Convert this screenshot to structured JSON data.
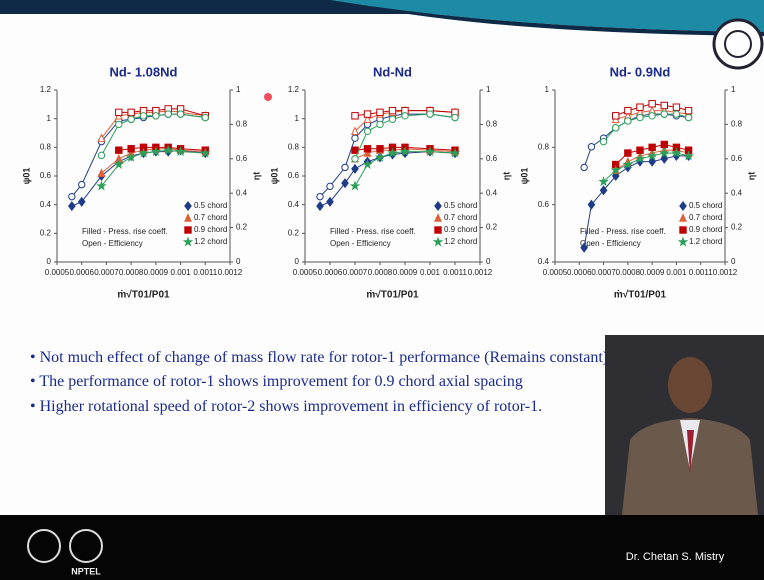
{
  "chart_data": [
    {
      "type": "line",
      "title": "Nd- 1.08Nd",
      "xlabel": "ṁ√T01/P01",
      "ylabel": "ψ01",
      "y2label": "ηt",
      "annotations": [
        "Filled - Press. rise coeff.",
        "Open - Efficiency"
      ],
      "xlim": [
        0.0005,
        0.0012
      ],
      "xticks": [
        0.0005,
        0.0006,
        0.0007,
        0.0008,
        0.0009,
        0.001,
        0.0011,
        0.0012
      ],
      "ylim": [
        0,
        1.2
      ],
      "yticks": [
        0,
        0.2,
        0.4,
        0.6,
        0.8,
        1,
        1.2
      ],
      "y2lim": [
        0,
        1
      ],
      "y2ticks": [
        0,
        0.2,
        0.4,
        0.6,
        0.8,
        1
      ],
      "x": [
        0.00056,
        0.0006,
        0.00068,
        0.00075,
        0.0008,
        0.00085,
        0.0009,
        0.00095,
        0.001,
        0.0011
      ],
      "series": [
        {
          "name": "0.5 chord",
          "color": "#1f3c88",
          "marker": "diamond",
          "filled": true,
          "values": [
            0.39,
            0.42,
            0.6,
            0.7,
            0.74,
            0.76,
            0.77,
            0.77,
            0.78,
            0.76
          ]
        },
        {
          "name": "0.7 chord",
          "color": "#e0603a",
          "marker": "triangle",
          "filled": true,
          "values": [
            null,
            null,
            0.62,
            0.72,
            0.76,
            0.78,
            0.79,
            0.79,
            0.78,
            0.77
          ]
        },
        {
          "name": "0.9 chord",
          "color": "#c00000",
          "marker": "square",
          "filled": true,
          "values": [
            null,
            null,
            null,
            0.78,
            0.79,
            0.8,
            0.8,
            0.8,
            0.79,
            0.78
          ]
        },
        {
          "name": "1.2 chord",
          "color": "#2ca05a",
          "marker": "star",
          "filled": true,
          "values": [
            null,
            null,
            0.53,
            0.68,
            0.73,
            0.76,
            0.77,
            0.78,
            0.77,
            0.76
          ]
        },
        {
          "color": "#1f3c88",
          "marker": "circle",
          "filled": false,
          "axis": "y2",
          "values": [
            0.38,
            0.45,
            0.7,
            0.82,
            0.83,
            0.84,
            0.85,
            0.86,
            0.86,
            0.84
          ]
        },
        {
          "color": "#e0603a",
          "marker": "triangle",
          "filled": false,
          "axis": "y2",
          "values": [
            null,
            null,
            0.72,
            0.85,
            0.86,
            0.87,
            0.87,
            0.88,
            0.87,
            0.85
          ]
        },
        {
          "color": "#c00000",
          "marker": "square",
          "filled": false,
          "axis": "y2",
          "values": [
            null,
            null,
            null,
            0.87,
            0.87,
            0.88,
            0.88,
            0.89,
            0.89,
            0.85
          ]
        },
        {
          "color": "#2ca05a",
          "marker": "circle",
          "filled": false,
          "axis": "y2",
          "values": [
            null,
            null,
            0.62,
            0.8,
            0.83,
            0.85,
            0.85,
            0.86,
            0.86,
            0.84
          ]
        }
      ]
    },
    {
      "type": "line",
      "title": "Nd-Nd",
      "xlabel": "ṁ√T01/P01",
      "ylabel": "ψ01",
      "y2label": "ηt",
      "annotations": [
        "Filled - Press. rise coeff.",
        "Open - Efficiency"
      ],
      "xlim": [
        0.0005,
        0.0012
      ],
      "xticks": [
        0.0005,
        0.0006,
        0.0007,
        0.0008,
        0.0009,
        0.001,
        0.0011,
        0.0012
      ],
      "ylim": [
        0,
        1.2
      ],
      "yticks": [
        0,
        0.2,
        0.4,
        0.6,
        0.8,
        1,
        1.2
      ],
      "y2lim": [
        0,
        1
      ],
      "y2ticks": [
        0,
        0.2,
        0.4,
        0.6,
        0.8,
        1
      ],
      "x": [
        0.00056,
        0.0006,
        0.00066,
        0.0007,
        0.00075,
        0.0008,
        0.00085,
        0.0009,
        0.001,
        0.0011
      ],
      "series": [
        {
          "name": "0.5 chord",
          "color": "#1f3c88",
          "marker": "diamond",
          "filled": true,
          "values": [
            0.39,
            0.42,
            0.55,
            0.65,
            0.7,
            0.73,
            0.75,
            0.76,
            0.77,
            0.76
          ]
        },
        {
          "name": "0.7 chord",
          "color": "#e0603a",
          "marker": "triangle",
          "filled": true,
          "values": [
            null,
            null,
            null,
            0.72,
            0.76,
            0.78,
            0.78,
            0.79,
            0.78,
            0.77
          ]
        },
        {
          "name": "0.9 chord",
          "color": "#c00000",
          "marker": "square",
          "filled": true,
          "values": [
            null,
            null,
            null,
            0.78,
            0.79,
            0.79,
            0.8,
            0.8,
            0.79,
            0.78
          ]
        },
        {
          "name": "1.2 chord",
          "color": "#2ca05a",
          "marker": "star",
          "filled": true,
          "values": [
            null,
            null,
            null,
            0.53,
            0.68,
            0.73,
            0.76,
            0.77,
            0.77,
            0.76
          ]
        },
        {
          "color": "#1f3c88",
          "marker": "circle",
          "filled": false,
          "axis": "y2",
          "values": [
            0.38,
            0.44,
            0.55,
            0.72,
            0.8,
            0.83,
            0.85,
            0.86,
            0.86,
            0.84
          ]
        },
        {
          "color": "#e0603a",
          "marker": "triangle",
          "filled": false,
          "axis": "y2",
          "values": [
            null,
            null,
            null,
            0.76,
            0.83,
            0.86,
            0.87,
            0.88,
            0.88,
            0.87
          ]
        },
        {
          "color": "#c00000",
          "marker": "square",
          "filled": false,
          "axis": "y2",
          "values": [
            null,
            null,
            null,
            0.85,
            0.86,
            0.87,
            0.88,
            0.88,
            0.88,
            0.87
          ]
        },
        {
          "color": "#2ca05a",
          "marker": "circle",
          "filled": false,
          "axis": "y2",
          "values": [
            null,
            null,
            null,
            0.6,
            0.76,
            0.8,
            0.83,
            0.85,
            0.86,
            0.84
          ]
        }
      ]
    },
    {
      "type": "line",
      "title": "Nd- 0.9Nd",
      "xlabel": "ṁ√T01/P01",
      "ylabel": "ψ01",
      "y2label": "ηt",
      "annotations": [
        "Filled - Press. rise coeff.",
        "Open - Efficiency"
      ],
      "xlim": [
        0.0005,
        0.0012
      ],
      "xticks": [
        0.0005,
        0.0006,
        0.0007,
        0.0008,
        0.0009,
        0.001,
        0.0011,
        0.0012
      ],
      "ylim": [
        0.4,
        1
      ],
      "yticks": [
        0.4,
        0.6,
        0.8,
        1
      ],
      "y2lim": [
        0,
        1
      ],
      "y2ticks": [
        0,
        0.2,
        0.4,
        0.6,
        0.8,
        1
      ],
      "x": [
        0.00062,
        0.00065,
        0.0007,
        0.00075,
        0.0008,
        0.00085,
        0.0009,
        0.00095,
        0.001,
        0.00105
      ],
      "series": [
        {
          "name": "0.5 chord",
          "color": "#1f3c88",
          "marker": "diamond",
          "filled": true,
          "values": [
            0.45,
            0.6,
            0.65,
            0.7,
            0.73,
            0.75,
            0.75,
            0.76,
            0.77,
            0.77
          ]
        },
        {
          "name": "0.7 chord",
          "color": "#e0603a",
          "marker": "triangle",
          "filled": true,
          "values": [
            null,
            null,
            null,
            0.72,
            0.75,
            0.77,
            0.78,
            0.79,
            0.79,
            0.78
          ]
        },
        {
          "name": "0.9 chord",
          "color": "#c00000",
          "marker": "square",
          "filled": true,
          "values": [
            null,
            null,
            null,
            0.74,
            0.78,
            0.79,
            0.8,
            0.81,
            0.8,
            0.79
          ]
        },
        {
          "name": "1.2 chord",
          "color": "#2ca05a",
          "marker": "star",
          "filled": true,
          "values": [
            null,
            null,
            0.68,
            0.72,
            0.74,
            0.76,
            0.77,
            0.78,
            0.78,
            0.77
          ]
        },
        {
          "color": "#1f3c88",
          "marker": "circle",
          "filled": false,
          "axis": "y2",
          "values": [
            0.55,
            0.67,
            0.72,
            0.78,
            0.82,
            0.85,
            0.86,
            0.86,
            0.85,
            0.84
          ]
        },
        {
          "color": "#e0603a",
          "marker": "triangle",
          "filled": false,
          "axis": "y2",
          "values": [
            null,
            null,
            null,
            0.83,
            0.85,
            0.87,
            0.88,
            0.88,
            0.87,
            0.86
          ]
        },
        {
          "color": "#c00000",
          "marker": "square",
          "filled": false,
          "axis": "y2",
          "values": [
            null,
            null,
            null,
            0.85,
            0.88,
            0.9,
            0.92,
            0.91,
            0.9,
            0.88
          ]
        },
        {
          "color": "#2ca05a",
          "marker": "circle",
          "filled": false,
          "axis": "y2",
          "values": [
            null,
            null,
            0.7,
            0.78,
            0.82,
            0.84,
            0.85,
            0.86,
            0.86,
            0.84
          ]
        }
      ]
    }
  ],
  "bullets": [
    "• Not much effect of change of mass flow rate for rotor-1 performance (Remains constant)",
    "• The performance of rotor-1 shows improvement  for 0.9 chord axial spacing",
    "• Higher rotational speed of rotor-2 shows improvement in efficiency of rotor-1."
  ],
  "footer": {
    "logo_text": "NPTEL",
    "presenter": "Dr. Chetan S. Mistry"
  }
}
